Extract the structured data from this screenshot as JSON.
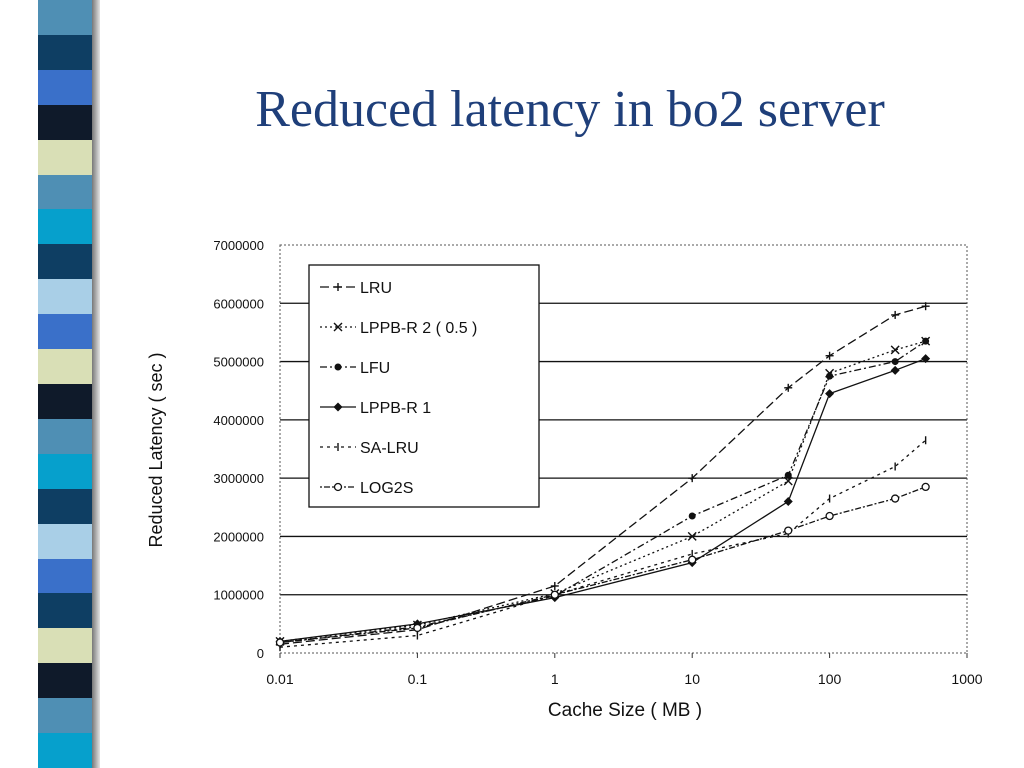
{
  "slide": {
    "title": "Reduced latency in bo2 server",
    "stripe_colors": [
      "#4f8fb4",
      "#0e3e63",
      "#3a70c9",
      "#0f1a2a",
      "#d9dfb6",
      "#4f8fb4",
      "#06a0cc",
      "#0e3e63",
      "#a9cfe7",
      "#3a70c9",
      "#d9dfb6",
      "#0f1a2a",
      "#4f8fb4",
      "#06a0cc",
      "#0e3e63",
      "#a9cfe7",
      "#3a70c9",
      "#0e3e63",
      "#d9dfb6",
      "#0f1a2a",
      "#4f8fb4",
      "#06a0cc"
    ]
  },
  "chart_data": {
    "type": "line",
    "title": "",
    "xlabel": "Cache Size ( MB )",
    "ylabel": "Reduced Latency ( sec )",
    "x_scale": "log",
    "xlim": [
      0.01,
      1000
    ],
    "ylim": [
      0,
      7000000
    ],
    "x_ticks": [
      "0.01",
      "0.1",
      "1",
      "10",
      "100",
      "1000"
    ],
    "y_ticks": [
      "0",
      "1000000",
      "2000000",
      "3000000",
      "4000000",
      "5000000",
      "6000000",
      "7000000"
    ],
    "grid": "horizontal",
    "legend_position": "top-left",
    "x": [
      0.01,
      0.1,
      1,
      10,
      50,
      100,
      300,
      500
    ],
    "series": [
      {
        "name": "LRU",
        "marker": "plus",
        "dash": "9,4",
        "values": [
          150000,
          400000,
          1150000,
          3000000,
          4550000,
          5100000,
          5800000,
          5950000
        ]
      },
      {
        "name": "LPPB-R 2 ( 0.5 )",
        "marker": "x",
        "dash": "2,3",
        "values": [
          200000,
          480000,
          1020000,
          2000000,
          2950000,
          4800000,
          5200000,
          5350000
        ]
      },
      {
        "name": "LFU",
        "marker": "dot",
        "dash": "7,3,2,3",
        "values": [
          180000,
          450000,
          980000,
          2350000,
          3050000,
          4750000,
          5000000,
          5350000
        ]
      },
      {
        "name": "LPPB-R 1",
        "marker": "diamond",
        "dash": "",
        "values": [
          200000,
          500000,
          950000,
          1550000,
          2600000,
          4450000,
          4850000,
          5050000
        ]
      },
      {
        "name": "SA-LRU",
        "marker": "tick",
        "dash": "3,4",
        "values": [
          100000,
          300000,
          1000000,
          1700000,
          2050000,
          2650000,
          3200000,
          3650000
        ]
      },
      {
        "name": "LOG2S",
        "marker": "circle",
        "dash": "2,2,6,2",
        "values": [
          180000,
          430000,
          1000000,
          1600000,
          2100000,
          2350000,
          2650000,
          2850000
        ]
      }
    ]
  }
}
